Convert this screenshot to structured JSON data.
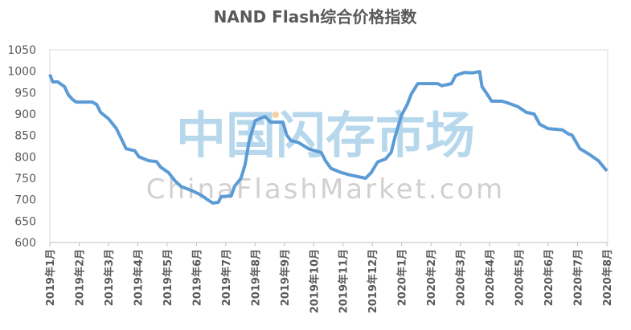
{
  "chart_data": {
    "type": "line",
    "title": "NAND Flash综合价格指数",
    "watermark": "中国闪存市场",
    "watermark_sub": "ChinaFlashMarket.com",
    "xlim": [
      0,
      19
    ],
    "xticks": [
      {
        "value": 0,
        "label": "2019年1月"
      },
      {
        "value": 1,
        "label": "2019年2月"
      },
      {
        "value": 2,
        "label": "2019年3月"
      },
      {
        "value": 3,
        "label": "2019年4月"
      },
      {
        "value": 4,
        "label": "2019年5月"
      },
      {
        "value": 5,
        "label": "2019年6月"
      },
      {
        "value": 6,
        "label": "2019年7月"
      },
      {
        "value": 7,
        "label": "2019年8月"
      },
      {
        "value": 8,
        "label": "2019年9月"
      },
      {
        "value": 9,
        "label": "2019年10月"
      },
      {
        "value": 10,
        "label": "2019年11月"
      },
      {
        "value": 11,
        "label": "2019年12月"
      },
      {
        "value": 12,
        "label": "2020年1月"
      },
      {
        "value": 13,
        "label": "2020年2月"
      },
      {
        "value": 14,
        "label": "2020年3月"
      },
      {
        "value": 15,
        "label": "2020年4月"
      },
      {
        "value": 16,
        "label": "2020年5月"
      },
      {
        "value": 17,
        "label": "2020年6月"
      },
      {
        "value": 18,
        "label": "2020年7月"
      },
      {
        "value": 19,
        "label": "2020年8月"
      }
    ],
    "ylim": [
      600,
      1050
    ],
    "yticks": [
      600,
      650,
      700,
      750,
      800,
      850,
      900,
      950,
      1000,
      1050
    ],
    "x": [
      0,
      0.1,
      0.27,
      0.5,
      0.63,
      0.77,
      0.9,
      1.45,
      1.6,
      1.73,
      2.0,
      2.27,
      2.47,
      2.6,
      2.9,
      3.04,
      3.37,
      3.64,
      3.78,
      4.05,
      4.27,
      4.47,
      4.88,
      5.15,
      5.42,
      5.56,
      5.75,
      5.84,
      6.19,
      6.3,
      6.52,
      6.66,
      6.8,
      7.01,
      7.34,
      7.53,
      7.95,
      8.08,
      8.22,
      8.49,
      8.85,
      9.26,
      9.4,
      9.59,
      9.95,
      10.22,
      10.77,
      10.96,
      11.18,
      11.45,
      11.64,
      11.78,
      12.0,
      12.19,
      12.33,
      12.55,
      13.23,
      13.37,
      13.7,
      13.84,
      14.14,
      14.41,
      14.66,
      14.74,
      14.93,
      15.07,
      15.42,
      15.7,
      15.97,
      16.25,
      16.52,
      16.71,
      16.99,
      17.48,
      17.7,
      17.81,
      18.08,
      18.44,
      18.71,
      19.0
    ],
    "series": [
      {
        "color": "#5b9bd5",
        "values": [
          992,
          975,
          975,
          964,
          945,
          934,
          928,
          928,
          922,
          904,
          889,
          866,
          838,
          819,
          814,
          800,
          791,
          789,
          776,
          763,
          744,
          731,
          720,
          711,
          698,
          692,
          694,
          707,
          709,
          731,
          750,
          782,
          838,
          885,
          894,
          881,
          881,
          851,
          838,
          833,
          818,
          810,
          791,
          773,
          763,
          758,
          750,
          763,
          788,
          795,
          810,
          848,
          898,
          922,
          947,
          971,
          971,
          966,
          971,
          990,
          997,
          996,
          999,
          964,
          945,
          930,
          930,
          924,
          917,
          904,
          900,
          876,
          866,
          863,
          853,
          851,
          819,
          804,
          791,
          767
        ]
      }
    ]
  }
}
